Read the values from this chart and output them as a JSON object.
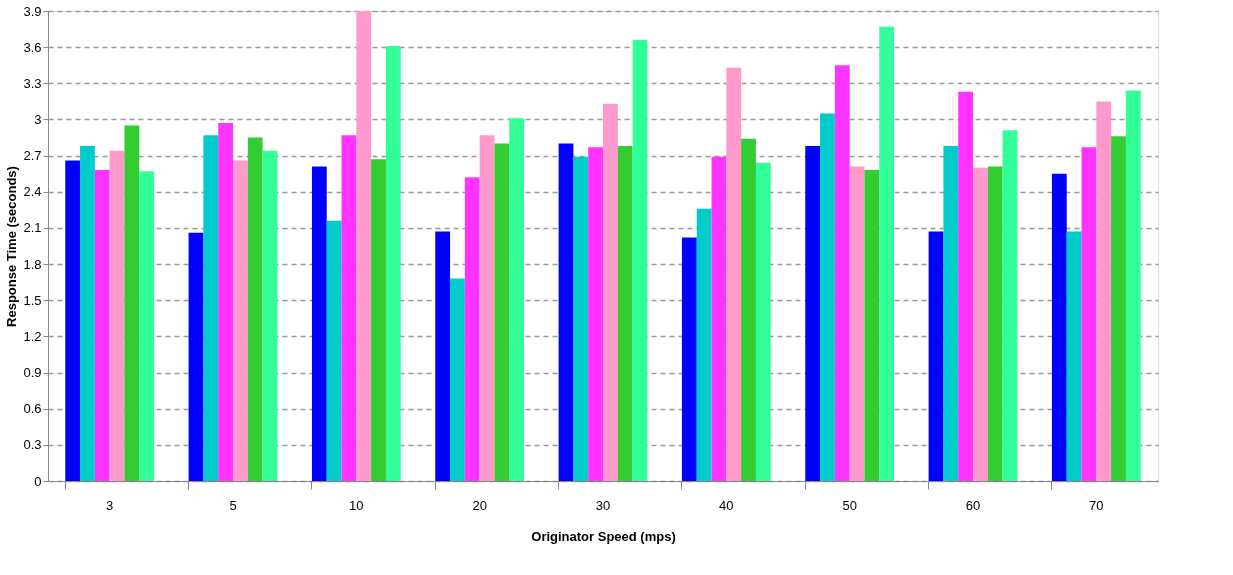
{
  "chart_data": {
    "type": "bar",
    "xlabel": "Originator Speed (mps)",
    "ylabel": "Response Time (seconds)",
    "categories": [
      "3",
      "5",
      "10",
      "20",
      "30",
      "40",
      "50",
      "60",
      "70"
    ],
    "series": [
      {
        "color": "#0000ff",
        "values": [
          2.66,
          2.06,
          2.61,
          2.07,
          2.8,
          2.02,
          2.78,
          2.07,
          2.55
        ]
      },
      {
        "color": "#00cccc",
        "values": [
          2.78,
          2.87,
          2.16,
          1.68,
          2.69,
          2.26,
          3.05,
          2.78,
          2.07
        ]
      },
      {
        "color": "#ff33ff",
        "values": [
          2.58,
          2.97,
          2.87,
          2.52,
          2.77,
          2.69,
          3.45,
          3.23,
          2.77
        ]
      },
      {
        "color": "#ff99cc",
        "values": [
          2.74,
          2.66,
          3.9,
          2.87,
          3.13,
          3.43,
          2.61,
          2.6,
          3.15
        ]
      },
      {
        "color": "#33cc33",
        "values": [
          2.95,
          2.85,
          2.67,
          2.8,
          2.78,
          2.84,
          2.58,
          2.61,
          2.86
        ]
      },
      {
        "color": "#33ff99",
        "values": [
          2.57,
          2.74,
          3.61,
          3.01,
          3.66,
          2.64,
          3.77,
          2.91,
          3.24
        ]
      }
    ],
    "ylim": [
      0,
      3.9
    ],
    "yticks": [
      0,
      0.3,
      0.6,
      0.9,
      1.2,
      1.5,
      1.8,
      2.1,
      2.4,
      2.7,
      3,
      3.3,
      3.6,
      3.9
    ],
    "grid": "y",
    "legend": false
  }
}
